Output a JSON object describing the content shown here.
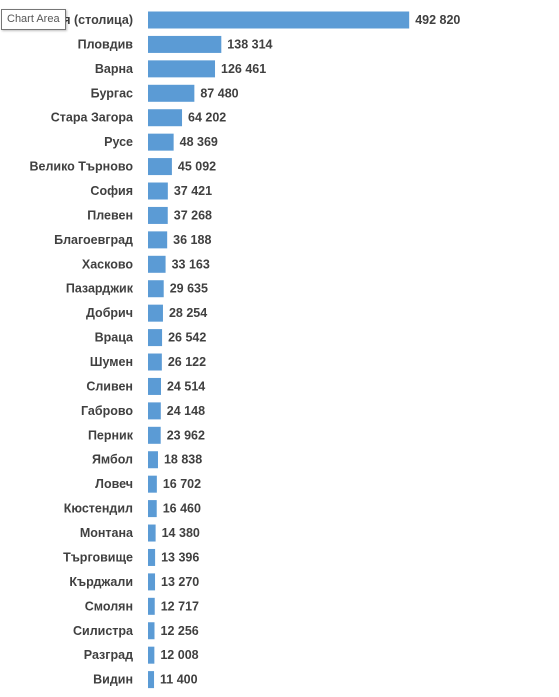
{
  "tooltip": {
    "text": "Chart Area"
  },
  "chart_data": {
    "type": "bar",
    "orientation": "horizontal",
    "title": "",
    "xlabel": "",
    "ylabel": "",
    "bar_color": "#5b9bd5",
    "label_color": "#404040",
    "grid": false,
    "legend": "none",
    "xlim": [
      0,
      500000
    ],
    "categories": [
      "София (столица)",
      "Пловдив",
      "Варна",
      "Бургас",
      "Стара Загора",
      "Русе",
      "Велико Търново",
      "София",
      "Плевен",
      "Благоевград",
      "Хасково",
      "Пазарджик",
      "Добрич",
      "Враца",
      "Шумен",
      "Сливен",
      "Габрово",
      "Перник",
      "Ямбол",
      "Ловеч",
      "Кюстендил",
      "Монтана",
      "Търговище",
      "Кърджали",
      "Смолян",
      "Силистра",
      "Разград",
      "Видин"
    ],
    "values": [
      492820,
      138314,
      126461,
      87480,
      64202,
      48369,
      45092,
      37421,
      37268,
      36188,
      33163,
      29635,
      28254,
      26542,
      26122,
      24514,
      24148,
      23962,
      18838,
      16702,
      16460,
      14380,
      13396,
      13270,
      12717,
      12256,
      12008,
      11400
    ],
    "value_labels": [
      "492 820",
      "138 314",
      "126 461",
      "87 480",
      "64 202",
      "48 369",
      "45 092",
      "37 421",
      "37 268",
      "36 188",
      "33 163",
      "29 635",
      "28 254",
      "26 542",
      "26 122",
      "24 514",
      "24 148",
      "23 962",
      "18 838",
      "16 702",
      "16 460",
      "14 380",
      "13 396",
      "13 270",
      "12 717",
      "12 256",
      "12 008",
      "11 400"
    ]
  }
}
